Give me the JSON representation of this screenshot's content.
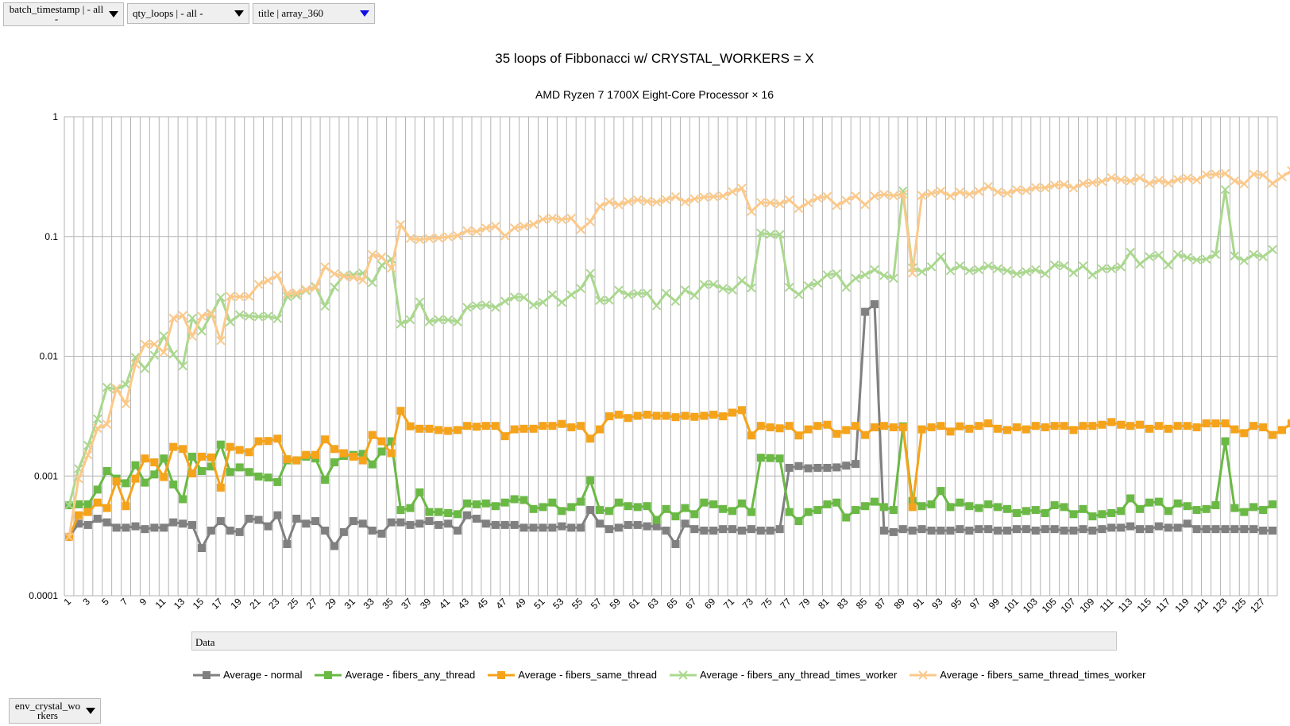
{
  "filters": {
    "batch_timestamp": "batch_timestamp | - all -",
    "qty_loops": "qty_loops | - all -",
    "title": "title | array_360",
    "row_field": "env_crystal_workers"
  },
  "data_field_label": "Data",
  "colors": {
    "normal": "#808080",
    "fibers_any_thread": "#6ab944",
    "fibers_same_thread": "#f5a31a",
    "fibers_any_thread_times_worker": "#aad88e",
    "fibers_same_thread_times_worker": "#fbc98a"
  },
  "chart_data": {
    "type": "line",
    "title": "35 loops of Fibbonacci w/ CRYSTAL_WORKERS = X",
    "subtitle": "AMD Ryzen 7 1700X Eight-Core Processor × 16",
    "y_scale": "log",
    "ylim": [
      0.0001,
      1
    ],
    "y_ticks": [
      "0.0001",
      "0.001",
      "0.01",
      "0.1",
      "1"
    ],
    "x_ticks": [
      "1",
      "3",
      "5",
      "7",
      "9",
      "11",
      "13",
      "15",
      "17",
      "19",
      "21",
      "23",
      "25",
      "27",
      "29",
      "31",
      "33",
      "35",
      "37",
      "39",
      "41",
      "43",
      "45",
      "47",
      "49",
      "51",
      "53",
      "55",
      "57",
      "59",
      "61",
      "63",
      "65",
      "67",
      "69",
      "71",
      "73",
      "75",
      "77",
      "79",
      "81",
      "83",
      "85",
      "87",
      "89",
      "91",
      "93",
      "95",
      "97",
      "99",
      "101",
      "103",
      "105",
      "107",
      "109",
      "111",
      "113",
      "115",
      "117",
      "119",
      "121",
      "123",
      "125",
      "127"
    ],
    "x_range": [
      1,
      128
    ],
    "grid": true,
    "legend_position": "bottom",
    "series": [
      {
        "name": "Average - normal",
        "key": "normal",
        "marker": "square",
        "values": [
          0.00031,
          0.0004,
          0.00039,
          0.00044,
          0.00041,
          0.00037,
          0.00037,
          0.00038,
          0.00036,
          0.00037,
          0.00037,
          0.00041,
          0.0004,
          0.00039,
          0.00025,
          0.00035,
          0.00042,
          0.00035,
          0.00034,
          0.00044,
          0.00043,
          0.00038,
          0.00047,
          0.00027,
          0.00044,
          0.0004,
          0.00042,
          0.00035,
          0.00026,
          0.00034,
          0.00042,
          0.0004,
          0.00035,
          0.00033,
          0.00041,
          0.00041,
          0.00039,
          0.0004,
          0.00042,
          0.00039,
          0.0004,
          0.00035,
          0.00047,
          0.00044,
          0.0004,
          0.00039,
          0.00039,
          0.00039,
          0.00037,
          0.00037,
          0.00037,
          0.00037,
          0.00038,
          0.00037,
          0.00037,
          0.00052,
          0.0004,
          0.00036,
          0.00037,
          0.00039,
          0.00039,
          0.00038,
          0.00038,
          0.00035,
          0.00027,
          0.0004,
          0.00036,
          0.00035,
          0.00035,
          0.00036,
          0.00036,
          0.00035,
          0.00036,
          0.00035,
          0.00035,
          0.00036,
          0.00117,
          0.00121,
          0.00116,
          0.00117,
          0.00117,
          0.00118,
          0.00122,
          0.00126,
          0.0235,
          0.0272,
          0.00035,
          0.00034,
          0.00036,
          0.00035,
          0.00036,
          0.00035,
          0.00035,
          0.00035,
          0.00036,
          0.00035,
          0.00036,
          0.00036,
          0.00035,
          0.00035,
          0.00036,
          0.00036,
          0.00035,
          0.00036,
          0.00036,
          0.00035,
          0.00035,
          0.00036,
          0.00035,
          0.00036,
          0.00037,
          0.00037,
          0.00038,
          0.00036,
          0.00036,
          0.00038,
          0.00037,
          0.00037,
          0.0004,
          0.00036,
          0.00036,
          0.00036,
          0.00036,
          0.00036,
          0.00036,
          0.00036,
          0.00035,
          0.00035
        ]
      },
      {
        "name": "Average - fibers_any_thread",
        "key": "fibers_any_thread",
        "marker": "square",
        "values": [
          0.00057,
          0.00058,
          0.00058,
          0.00077,
          0.0011,
          0.00095,
          0.00087,
          0.00123,
          0.00088,
          0.00103,
          0.0014,
          0.00085,
          0.00064,
          0.00145,
          0.0011,
          0.0012,
          0.00183,
          0.00108,
          0.00118,
          0.00108,
          0.00099,
          0.00097,
          0.00089,
          0.00135,
          0.00135,
          0.00145,
          0.0014,
          0.00093,
          0.0013,
          0.00147,
          0.0015,
          0.00153,
          0.00125,
          0.0016,
          0.00195,
          0.00052,
          0.00054,
          0.00073,
          0.0005,
          0.0005,
          0.00049,
          0.00048,
          0.00059,
          0.00058,
          0.00059,
          0.00056,
          0.0006,
          0.00064,
          0.00063,
          0.00053,
          0.00055,
          0.0006,
          0.00051,
          0.00055,
          0.00061,
          0.00092,
          0.00052,
          0.00051,
          0.0006,
          0.00056,
          0.00055,
          0.00056,
          0.00043,
          0.00053,
          0.00046,
          0.00054,
          0.00048,
          0.0006,
          0.00058,
          0.00053,
          0.00051,
          0.00059,
          0.0005,
          0.00142,
          0.00141,
          0.0014,
          0.0005,
          0.00042,
          0.0005,
          0.00052,
          0.00058,
          0.0006,
          0.00045,
          0.00052,
          0.00056,
          0.00061,
          0.00055,
          0.00052,
          0.0026,
          0.00062,
          0.00056,
          0.00058,
          0.00075,
          0.00055,
          0.0006,
          0.00056,
          0.00054,
          0.00058,
          0.00055,
          0.00053,
          0.00049,
          0.00051,
          0.00052,
          0.00049,
          0.00057,
          0.00055,
          0.00048,
          0.00053,
          0.00046,
          0.00048,
          0.00049,
          0.00051,
          0.00065,
          0.00053,
          0.0006,
          0.00061,
          0.00051,
          0.00059,
          0.00056,
          0.00052,
          0.00053,
          0.00057,
          0.00195,
          0.00054,
          0.0005,
          0.00055,
          0.00052,
          0.00058
        ]
      },
      {
        "name": "Average - fibers_same_thread",
        "key": "fibers_same_thread",
        "marker": "square",
        "values": [
          0.00031,
          0.00047,
          0.0005,
          0.0006,
          0.00054,
          0.0009,
          0.00056,
          0.00095,
          0.0014,
          0.0013,
          0.00098,
          0.00175,
          0.00168,
          0.00105,
          0.00145,
          0.00143,
          0.0008,
          0.00175,
          0.00165,
          0.00158,
          0.00195,
          0.00196,
          0.00205,
          0.00138,
          0.00135,
          0.0015,
          0.0015,
          0.00202,
          0.00168,
          0.00155,
          0.00145,
          0.00135,
          0.0022,
          0.00195,
          0.00155,
          0.0035,
          0.0026,
          0.00248,
          0.00248,
          0.00242,
          0.00238,
          0.00242,
          0.00262,
          0.00258,
          0.00262,
          0.00262,
          0.00215,
          0.00245,
          0.00248,
          0.00248,
          0.00262,
          0.00262,
          0.00272,
          0.00255,
          0.00262,
          0.00205,
          0.00245,
          0.00315,
          0.00325,
          0.00305,
          0.00318,
          0.00325,
          0.00318,
          0.00318,
          0.0031,
          0.00318,
          0.00312,
          0.00318,
          0.00325,
          0.00315,
          0.00338,
          0.00355,
          0.00218,
          0.00262,
          0.00255,
          0.0025,
          0.00262,
          0.00218,
          0.00245,
          0.00262,
          0.00268,
          0.00225,
          0.00242,
          0.00262,
          0.0022,
          0.00255,
          0.00262,
          0.00255,
          0.00255,
          0.00055,
          0.00245,
          0.00255,
          0.00262,
          0.00235,
          0.0026,
          0.00248,
          0.00262,
          0.00275,
          0.00248,
          0.00242,
          0.00255,
          0.00245,
          0.00262,
          0.00255,
          0.00262,
          0.00262,
          0.00242,
          0.00262,
          0.00262,
          0.00268,
          0.00282,
          0.00268,
          0.00262,
          0.00268,
          0.00248,
          0.00262,
          0.00248,
          0.00262,
          0.00262,
          0.00255,
          0.00275,
          0.00275,
          0.00275,
          0.00245,
          0.00228,
          0.00262,
          0.00255,
          0.0022,
          0.00242,
          0.00275
        ]
      },
      {
        "name": "Average - fibers_any_thread_times_worker",
        "key": "fibers_any_thread_times_worker",
        "marker": "x",
        "values": [
          0.00057,
          0.00115,
          0.0018,
          0.003,
          0.0055,
          0.0053,
          0.0058,
          0.0098,
          0.0079,
          0.0102,
          0.0148,
          0.0104,
          0.0083,
          0.0208,
          0.0162,
          0.0224,
          0.031,
          0.0194,
          0.0222,
          0.0216,
          0.0214,
          0.0216,
          0.0206,
          0.0316,
          0.0324,
          0.0354,
          0.0382,
          0.0262,
          0.0378,
          0.0472,
          0.0478,
          0.0496,
          0.0412,
          0.0576,
          0.0648,
          0.0186,
          0.0202,
          0.0284,
          0.0194,
          0.0202,
          0.0201,
          0.0194,
          0.0256,
          0.0264,
          0.0268,
          0.0256,
          0.0288,
          0.0312,
          0.031,
          0.0268,
          0.0282,
          0.0326,
          0.0282,
          0.0326,
          0.0368,
          0.0492,
          0.0292,
          0.0294,
          0.0356,
          0.0326,
          0.0334,
          0.0336,
          0.0264,
          0.0336,
          0.0288,
          0.0358,
          0.0322,
          0.0398,
          0.0398,
          0.0368,
          0.0358,
          0.0428,
          0.0372,
          0.107,
          0.104,
          0.104,
          0.0376,
          0.0328,
          0.0388,
          0.0408,
          0.0478,
          0.0488,
          0.0376,
          0.0448,
          0.0478,
          0.0528,
          0.0472,
          0.0448,
          0.24,
          0.0548,
          0.0508,
          0.0558,
          0.0678,
          0.0518,
          0.0568,
          0.0518,
          0.0528,
          0.0568,
          0.0538,
          0.0518,
          0.0488,
          0.0508,
          0.0528,
          0.0488,
          0.0578,
          0.0568,
          0.0498,
          0.0568,
          0.0478,
          0.0538,
          0.0538,
          0.0558,
          0.0738,
          0.0588,
          0.0678,
          0.0698,
          0.0578,
          0.0708,
          0.0668,
          0.0638,
          0.0648,
          0.0708,
          0.246,
          0.0688,
          0.0628,
          0.0708,
          0.0678,
          0.0778
        ]
      },
      {
        "name": "Average - fibers_same_thread_times_worker",
        "key": "fibers_same_thread_times_worker",
        "marker": "x",
        "values": [
          0.00031,
          0.00095,
          0.0015,
          0.0025,
          0.0027,
          0.0054,
          0.004,
          0.0086,
          0.0126,
          0.0126,
          0.0108,
          0.0208,
          0.0219,
          0.0147,
          0.0216,
          0.0229,
          0.0135,
          0.0316,
          0.0314,
          0.0316,
          0.0398,
          0.0429,
          0.0473,
          0.0332,
          0.0338,
          0.036,
          0.0375,
          0.0558,
          0.0488,
          0.0465,
          0.0456,
          0.0432,
          0.0706,
          0.0675,
          0.0543,
          0.126,
          0.0962,
          0.0942,
          0.0962,
          0.0972,
          0.0993,
          0.1017,
          0.1116,
          0.1101,
          0.1176,
          0.1218,
          0.101,
          0.1182,
          0.1215,
          0.1265,
          0.1393,
          0.1422,
          0.1385,
          0.1421,
          0.1145,
          0.1328,
          0.1786,
          0.1944,
          0.1841,
          0.1955,
          0.2022,
          0.1968,
          0.1937,
          0.2032,
          0.2148,
          0.1948,
          0.2061,
          0.2133,
          0.2152,
          0.218,
          0.2369,
          0.2533,
          0.162,
          0.1922,
          0.1914,
          0.1874,
          0.2017,
          0.1716,
          0.1916,
          0.2092,
          0.2158,
          0.1812,
          0.2001,
          0.2175,
          0.1843,
          0.2178,
          0.2246,
          0.2191,
          0.2252,
          0.0495,
          0.2205,
          0.2291,
          0.2393,
          0.2179,
          0.2349,
          0.2254,
          0.2388,
          0.2615,
          0.2353,
          0.2299,
          0.2454,
          0.2418,
          0.2566,
          0.2553,
          0.2683,
          0.2712,
          0.2542,
          0.2761,
          0.2813,
          0.2882,
          0.3101,
          0.2972,
          0.2908,
          0.3081,
          0.2773,
          0.294,
          0.2797,
          0.2992,
          0.3069,
          0.2959,
          0.3281,
          0.3311,
          0.3355,
          0.2916,
          0.2749,
          0.3315,
          0.3264,
          0.2772,
          0.3152,
          0.3548
        ]
      }
    ]
  }
}
